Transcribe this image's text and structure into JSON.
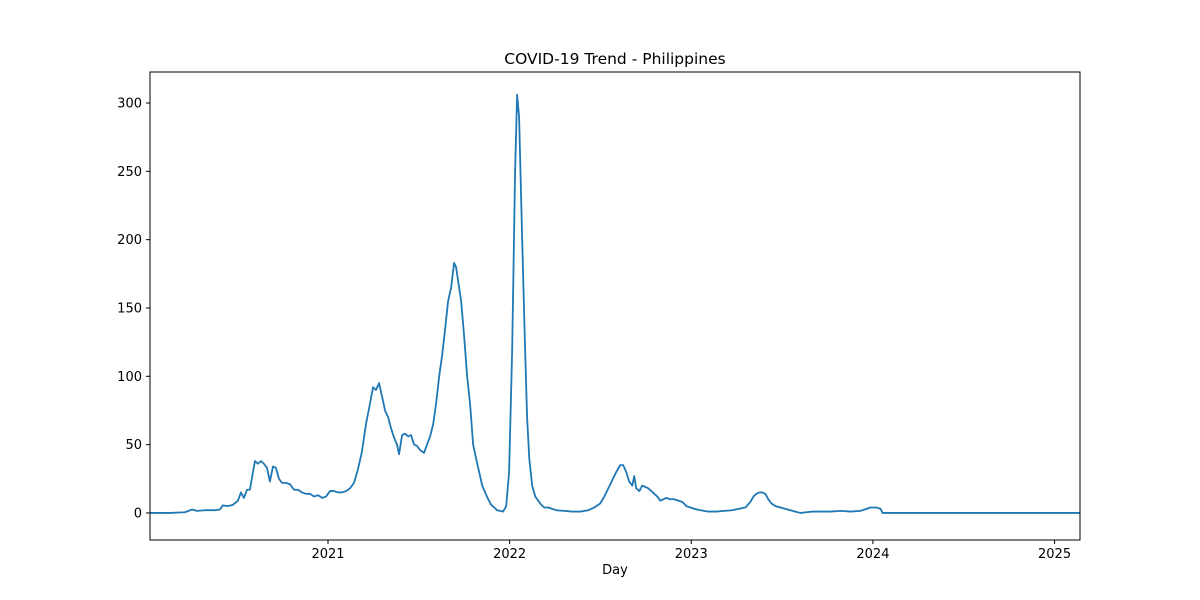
{
  "chart_data": {
    "type": "line",
    "title": "COVID-19 Trend - Philippines",
    "x_label": "Day",
    "color": "#1f77b4",
    "x": [
      2020.02,
      2020.129,
      2020.212,
      2020.251,
      2020.278,
      2020.322,
      2020.377,
      2020.405,
      2020.421,
      2020.449,
      2020.477,
      2020.504,
      2020.521,
      2020.537,
      2020.554,
      2020.57,
      2020.587,
      2020.598,
      2020.614,
      2020.631,
      2020.647,
      2020.664,
      2020.68,
      2020.697,
      2020.713,
      2020.73,
      2020.747,
      2020.769,
      2020.791,
      2020.813,
      2020.835,
      2020.857,
      2020.879,
      2020.901,
      2020.923,
      2020.945,
      2020.967,
      2020.989,
      2021.011,
      2021.033,
      2021.055,
      2021.077,
      2021.099,
      2021.121,
      2021.143,
      2021.165,
      2021.187,
      2021.209,
      2021.231,
      2021.248,
      2021.264,
      2021.281,
      2021.298,
      2021.314,
      2021.331,
      2021.347,
      2021.364,
      2021.38,
      2021.391,
      2021.408,
      2021.424,
      2021.441,
      2021.457,
      2021.474,
      2021.49,
      2021.507,
      2021.529,
      2021.545,
      2021.562,
      2021.579,
      2021.595,
      2021.612,
      2021.628,
      2021.645,
      2021.661,
      2021.678,
      2021.694,
      2021.705,
      2021.716,
      2021.733,
      2021.749,
      2021.766,
      2021.782,
      2021.799,
      2021.815,
      2021.832,
      2021.849,
      2021.865,
      2021.882,
      2021.898,
      2021.915,
      2021.931,
      2021.948,
      2021.964,
      2021.981,
      2021.997,
      2022.014,
      2022.03,
      2022.041,
      2022.052,
      2022.069,
      2022.085,
      2022.096,
      2022.108,
      2022.124,
      2022.141,
      2022.157,
      2022.174,
      2022.19,
      2022.212,
      2022.234,
      2022.256,
      2022.3,
      2022.344,
      2022.389,
      2022.433,
      2022.466,
      2022.499,
      2022.521,
      2022.543,
      2022.565,
      2022.587,
      2022.609,
      2022.625,
      2022.642,
      2022.658,
      2022.675,
      2022.686,
      2022.697,
      2022.714,
      2022.73,
      2022.747,
      2022.763,
      2022.78,
      2022.796,
      2022.813,
      2022.829,
      2022.846,
      2022.862,
      2022.884,
      2022.906,
      2022.929,
      2022.951,
      2022.973,
      2022.995,
      2023.017,
      2023.05,
      2023.094,
      2023.138,
      2023.182,
      2023.226,
      2023.259,
      2023.298,
      2023.325,
      2023.342,
      2023.358,
      2023.375,
      2023.391,
      2023.408,
      2023.424,
      2023.441,
      2023.463,
      2023.491,
      2023.518,
      2023.546,
      2023.573,
      2023.601,
      2023.634,
      2023.667,
      2023.711,
      2023.766,
      2023.821,
      2023.876,
      2023.931,
      2023.964,
      2023.986,
      2024.019,
      2024.042,
      2024.053,
      2025.14
    ],
    "values": [
      0,
      0,
      0.5,
      2.5,
      1.5,
      2,
      2,
      2.5,
      5.5,
      5,
      6,
      9,
      15,
      11,
      17,
      17,
      30,
      38,
      36,
      38,
      36,
      33,
      23,
      34,
      33,
      25,
      22,
      22,
      21,
      17,
      17,
      15,
      14,
      14,
      12,
      13,
      11,
      12,
      16,
      16,
      15,
      15,
      16,
      18,
      22,
      32,
      45,
      65,
      80,
      92,
      90,
      95,
      85,
      75,
      70,
      62,
      55,
      50,
      43,
      57,
      58,
      56,
      57,
      50,
      49,
      46,
      44,
      50,
      56,
      65,
      80,
      100,
      115,
      135,
      155,
      165,
      183,
      180,
      170,
      155,
      130,
      100,
      80,
      50,
      40,
      30,
      20,
      15,
      10,
      6,
      4,
      2,
      1.5,
      1,
      5,
      30,
      120,
      250,
      306,
      290,
      200,
      120,
      70,
      40,
      20,
      12,
      9,
      6,
      4,
      4,
      3,
      2,
      1.5,
      1,
      1,
      2,
      4,
      7,
      12,
      18,
      24,
      30,
      35,
      35,
      30,
      23,
      20,
      27,
      18,
      16,
      20,
      19,
      18,
      16,
      14,
      12,
      9,
      10,
      11,
      10,
      10,
      9,
      8,
      5,
      4,
      3,
      2,
      1,
      1,
      1.5,
      2,
      3,
      4,
      8,
      12,
      14,
      15,
      15,
      14,
      10,
      7,
      5,
      4,
      3,
      2,
      1,
      0,
      0.5,
      1,
      1,
      1,
      1.5,
      1,
      1.5,
      3,
      4,
      4,
      3,
      0,
      0
    ],
    "xlim": [
      2020.02,
      2025.14
    ],
    "xticks": [
      2021,
      2022,
      2023,
      2024,
      2025
    ],
    "ylim": [
      -19.8,
      322.7
    ],
    "yticks": [
      0,
      50,
      100,
      150,
      200,
      250,
      300
    ]
  }
}
